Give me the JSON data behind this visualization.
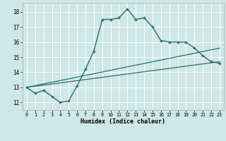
{
  "xlabel": "Humidex (Indice chaleur)",
  "bg_color": "#cde8e5",
  "grid_color": "#ffffff",
  "line_color": "#2e6e63",
  "xlim": [
    -0.5,
    23.5
  ],
  "ylim": [
    11.5,
    18.6
  ],
  "xticks": [
    0,
    1,
    2,
    3,
    4,
    5,
    6,
    7,
    8,
    9,
    10,
    11,
    12,
    13,
    14,
    15,
    16,
    17,
    18,
    19,
    20,
    21,
    22,
    23
  ],
  "yticks": [
    12,
    13,
    14,
    15,
    16,
    17,
    18
  ],
  "line1_x": [
    0,
    1,
    2,
    3,
    4,
    5,
    6,
    7,
    8,
    9,
    10,
    11,
    12,
    13,
    14,
    15,
    16,
    17,
    18,
    19,
    20,
    21,
    22,
    23
  ],
  "line1_y": [
    13.0,
    12.6,
    12.8,
    12.4,
    12.0,
    12.1,
    13.1,
    14.2,
    15.4,
    17.5,
    17.5,
    17.6,
    18.2,
    17.5,
    17.6,
    17.0,
    16.1,
    16.0,
    16.0,
    16.0,
    15.6,
    15.1,
    14.7,
    14.6
  ],
  "line2_x": [
    0,
    23
  ],
  "line2_y": [
    13.0,
    15.6
  ],
  "line3_x": [
    0,
    23
  ],
  "line3_y": [
    13.0,
    14.7
  ]
}
